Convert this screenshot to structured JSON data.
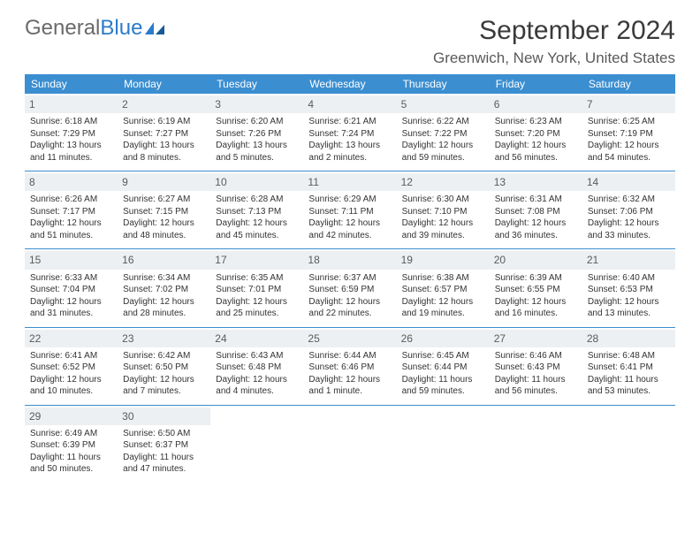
{
  "logo": {
    "part1": "General",
    "part2": "Blue"
  },
  "title": "September 2024",
  "location": "Greenwich, New York, United States",
  "colors": {
    "header_bg": "#3b8ed0",
    "header_text": "#ffffff",
    "daynum_bg": "#edf0f2",
    "text": "#333333",
    "logo_gray": "#6a6a6a",
    "logo_blue": "#2c7bc9"
  },
  "day_names": [
    "Sunday",
    "Monday",
    "Tuesday",
    "Wednesday",
    "Thursday",
    "Friday",
    "Saturday"
  ],
  "weeks": [
    [
      {
        "d": "1",
        "sr": "Sunrise: 6:18 AM",
        "ss": "Sunset: 7:29 PM",
        "dl1": "Daylight: 13 hours",
        "dl2": "and 11 minutes."
      },
      {
        "d": "2",
        "sr": "Sunrise: 6:19 AM",
        "ss": "Sunset: 7:27 PM",
        "dl1": "Daylight: 13 hours",
        "dl2": "and 8 minutes."
      },
      {
        "d": "3",
        "sr": "Sunrise: 6:20 AM",
        "ss": "Sunset: 7:26 PM",
        "dl1": "Daylight: 13 hours",
        "dl2": "and 5 minutes."
      },
      {
        "d": "4",
        "sr": "Sunrise: 6:21 AM",
        "ss": "Sunset: 7:24 PM",
        "dl1": "Daylight: 13 hours",
        "dl2": "and 2 minutes."
      },
      {
        "d": "5",
        "sr": "Sunrise: 6:22 AM",
        "ss": "Sunset: 7:22 PM",
        "dl1": "Daylight: 12 hours",
        "dl2": "and 59 minutes."
      },
      {
        "d": "6",
        "sr": "Sunrise: 6:23 AM",
        "ss": "Sunset: 7:20 PM",
        "dl1": "Daylight: 12 hours",
        "dl2": "and 56 minutes."
      },
      {
        "d": "7",
        "sr": "Sunrise: 6:25 AM",
        "ss": "Sunset: 7:19 PM",
        "dl1": "Daylight: 12 hours",
        "dl2": "and 54 minutes."
      }
    ],
    [
      {
        "d": "8",
        "sr": "Sunrise: 6:26 AM",
        "ss": "Sunset: 7:17 PM",
        "dl1": "Daylight: 12 hours",
        "dl2": "and 51 minutes."
      },
      {
        "d": "9",
        "sr": "Sunrise: 6:27 AM",
        "ss": "Sunset: 7:15 PM",
        "dl1": "Daylight: 12 hours",
        "dl2": "and 48 minutes."
      },
      {
        "d": "10",
        "sr": "Sunrise: 6:28 AM",
        "ss": "Sunset: 7:13 PM",
        "dl1": "Daylight: 12 hours",
        "dl2": "and 45 minutes."
      },
      {
        "d": "11",
        "sr": "Sunrise: 6:29 AM",
        "ss": "Sunset: 7:11 PM",
        "dl1": "Daylight: 12 hours",
        "dl2": "and 42 minutes."
      },
      {
        "d": "12",
        "sr": "Sunrise: 6:30 AM",
        "ss": "Sunset: 7:10 PM",
        "dl1": "Daylight: 12 hours",
        "dl2": "and 39 minutes."
      },
      {
        "d": "13",
        "sr": "Sunrise: 6:31 AM",
        "ss": "Sunset: 7:08 PM",
        "dl1": "Daylight: 12 hours",
        "dl2": "and 36 minutes."
      },
      {
        "d": "14",
        "sr": "Sunrise: 6:32 AM",
        "ss": "Sunset: 7:06 PM",
        "dl1": "Daylight: 12 hours",
        "dl2": "and 33 minutes."
      }
    ],
    [
      {
        "d": "15",
        "sr": "Sunrise: 6:33 AM",
        "ss": "Sunset: 7:04 PM",
        "dl1": "Daylight: 12 hours",
        "dl2": "and 31 minutes."
      },
      {
        "d": "16",
        "sr": "Sunrise: 6:34 AM",
        "ss": "Sunset: 7:02 PM",
        "dl1": "Daylight: 12 hours",
        "dl2": "and 28 minutes."
      },
      {
        "d": "17",
        "sr": "Sunrise: 6:35 AM",
        "ss": "Sunset: 7:01 PM",
        "dl1": "Daylight: 12 hours",
        "dl2": "and 25 minutes."
      },
      {
        "d": "18",
        "sr": "Sunrise: 6:37 AM",
        "ss": "Sunset: 6:59 PM",
        "dl1": "Daylight: 12 hours",
        "dl2": "and 22 minutes."
      },
      {
        "d": "19",
        "sr": "Sunrise: 6:38 AM",
        "ss": "Sunset: 6:57 PM",
        "dl1": "Daylight: 12 hours",
        "dl2": "and 19 minutes."
      },
      {
        "d": "20",
        "sr": "Sunrise: 6:39 AM",
        "ss": "Sunset: 6:55 PM",
        "dl1": "Daylight: 12 hours",
        "dl2": "and 16 minutes."
      },
      {
        "d": "21",
        "sr": "Sunrise: 6:40 AM",
        "ss": "Sunset: 6:53 PM",
        "dl1": "Daylight: 12 hours",
        "dl2": "and 13 minutes."
      }
    ],
    [
      {
        "d": "22",
        "sr": "Sunrise: 6:41 AM",
        "ss": "Sunset: 6:52 PM",
        "dl1": "Daylight: 12 hours",
        "dl2": "and 10 minutes."
      },
      {
        "d": "23",
        "sr": "Sunrise: 6:42 AM",
        "ss": "Sunset: 6:50 PM",
        "dl1": "Daylight: 12 hours",
        "dl2": "and 7 minutes."
      },
      {
        "d": "24",
        "sr": "Sunrise: 6:43 AM",
        "ss": "Sunset: 6:48 PM",
        "dl1": "Daylight: 12 hours",
        "dl2": "and 4 minutes."
      },
      {
        "d": "25",
        "sr": "Sunrise: 6:44 AM",
        "ss": "Sunset: 6:46 PM",
        "dl1": "Daylight: 12 hours",
        "dl2": "and 1 minute."
      },
      {
        "d": "26",
        "sr": "Sunrise: 6:45 AM",
        "ss": "Sunset: 6:44 PM",
        "dl1": "Daylight: 11 hours",
        "dl2": "and 59 minutes."
      },
      {
        "d": "27",
        "sr": "Sunrise: 6:46 AM",
        "ss": "Sunset: 6:43 PM",
        "dl1": "Daylight: 11 hours",
        "dl2": "and 56 minutes."
      },
      {
        "d": "28",
        "sr": "Sunrise: 6:48 AM",
        "ss": "Sunset: 6:41 PM",
        "dl1": "Daylight: 11 hours",
        "dl2": "and 53 minutes."
      }
    ],
    [
      {
        "d": "29",
        "sr": "Sunrise: 6:49 AM",
        "ss": "Sunset: 6:39 PM",
        "dl1": "Daylight: 11 hours",
        "dl2": "and 50 minutes."
      },
      {
        "d": "30",
        "sr": "Sunrise: 6:50 AM",
        "ss": "Sunset: 6:37 PM",
        "dl1": "Daylight: 11 hours",
        "dl2": "and 47 minutes."
      },
      null,
      null,
      null,
      null,
      null
    ]
  ]
}
